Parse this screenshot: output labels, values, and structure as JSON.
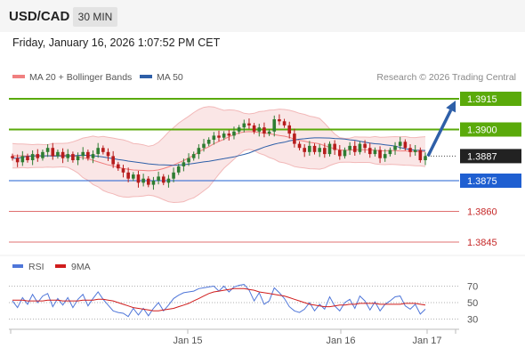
{
  "header": {
    "symbol": "USD/CAD",
    "timeframe": "30 MIN",
    "datetime": "Friday, January 16, 2026 1:07:52 PM CET"
  },
  "colors": {
    "candle_up": "#2e7d32",
    "candle_down": "#b71c1c",
    "band": "#f2b8b8",
    "ma20": "#f08080",
    "ma50": "#2e5fa8",
    "resistance": "#5aaa0a",
    "support": "#1f5fd1",
    "target": "#e07070",
    "arrow": "#2e5fa8",
    "rsi": "#4f76d9",
    "rsi_ma": "#d01c1c"
  },
  "chart_data": [
    {
      "type": "candlestick",
      "legend": [
        {
          "label": "MA 20 + Bollinger Bands",
          "color": "#f08080"
        },
        {
          "label": "MA 50",
          "color": "#2e5fa8"
        }
      ],
      "credit": "Research © 2026 Trading Central",
      "x_ticks": [
        "Jan 15",
        "Jan 16",
        "Jan 17"
      ],
      "current_price": "1.3887",
      "levels": [
        {
          "label": "1.3915",
          "value": 1.3915,
          "kind": "resistance",
          "style": "box"
        },
        {
          "label": "1.3900",
          "value": 1.39,
          "kind": "resistance",
          "style": "box"
        },
        {
          "label": "1.3887",
          "value": 1.3887,
          "kind": "last",
          "style": "box"
        },
        {
          "label": "1.3875",
          "value": 1.3875,
          "kind": "support",
          "style": "box"
        },
        {
          "label": "1.3860",
          "value": 1.386,
          "kind": "target",
          "style": "text"
        },
        {
          "label": "1.3845",
          "value": 1.3845,
          "kind": "target",
          "style": "text"
        }
      ],
      "forecast_arrow": {
        "from": 1.3887,
        "to": 1.3915,
        "direction": "up"
      },
      "closes": [
        1.3886,
        1.3884,
        1.3887,
        1.3885,
        1.3888,
        1.3886,
        1.3889,
        1.3891,
        1.3887,
        1.3889,
        1.3886,
        1.3888,
        1.3885,
        1.3887,
        1.3889,
        1.3886,
        1.3888,
        1.3891,
        1.3889,
        1.3887,
        1.3883,
        1.3881,
        1.3879,
        1.3876,
        1.3878,
        1.3874,
        1.3876,
        1.3873,
        1.3875,
        1.3877,
        1.3874,
        1.3876,
        1.3879,
        1.3882,
        1.3884,
        1.3886,
        1.3888,
        1.3891,
        1.3893,
        1.3895,
        1.3897,
        1.3896,
        1.3898,
        1.3897,
        1.3899,
        1.3901,
        1.3903,
        1.3902,
        1.3899,
        1.3901,
        1.3898,
        1.3899,
        1.3905,
        1.3904,
        1.3902,
        1.3898,
        1.3893,
        1.3891,
        1.3889,
        1.3892,
        1.3889,
        1.3891,
        1.3888,
        1.3893,
        1.389,
        1.3887,
        1.389,
        1.3892,
        1.3889,
        1.3893,
        1.3891,
        1.3888,
        1.389,
        1.3886,
        1.3888,
        1.389,
        1.3892,
        1.3894,
        1.3891,
        1.3889,
        1.389,
        1.3885,
        1.3887
      ]
    },
    {
      "type": "line",
      "title": "RSI",
      "legend": [
        {
          "label": "RSI",
          "color": "#4f76d9"
        },
        {
          "label": "9MA",
          "color": "#d01c1c"
        }
      ],
      "y_ticks": [
        70,
        50,
        30
      ],
      "ylim": [
        20,
        80
      ],
      "series": [
        {
          "name": "RSI",
          "values": [
            52,
            44,
            56,
            48,
            60,
            50,
            58,
            61,
            45,
            55,
            47,
            56,
            44,
            54,
            60,
            46,
            55,
            63,
            54,
            47,
            40,
            38,
            37,
            33,
            43,
            35,
            43,
            34,
            43,
            50,
            40,
            47,
            55,
            59,
            62,
            63,
            64,
            67,
            68,
            69,
            70,
            64,
            70,
            63,
            69,
            71,
            72,
            65,
            52,
            62,
            48,
            52,
            68,
            62,
            55,
            45,
            40,
            38,
            42,
            50,
            40,
            48,
            42,
            57,
            46,
            40,
            50,
            54,
            43,
            58,
            52,
            41,
            51,
            40,
            48,
            52,
            57,
            58,
            46,
            42,
            48,
            36,
            42
          ]
        },
        {
          "name": "9MA",
          "values": [
            53,
            53,
            53,
            52,
            52,
            52,
            52,
            53,
            53,
            53,
            52,
            52,
            52,
            52,
            53,
            53,
            53,
            54,
            54,
            53,
            52,
            50,
            48,
            46,
            44,
            43,
            42,
            41,
            40,
            40,
            41,
            42,
            43,
            45,
            47,
            49,
            52,
            55,
            58,
            61,
            63,
            64,
            65,
            66,
            67,
            67,
            67,
            66,
            65,
            63,
            62,
            61,
            60,
            59,
            58,
            56,
            54,
            52,
            50,
            48,
            47,
            46,
            45,
            45,
            46,
            47,
            47,
            48,
            48,
            49,
            49,
            49,
            49,
            48,
            48,
            48,
            48,
            48,
            49,
            49,
            49,
            48,
            47
          ]
        }
      ]
    }
  ]
}
